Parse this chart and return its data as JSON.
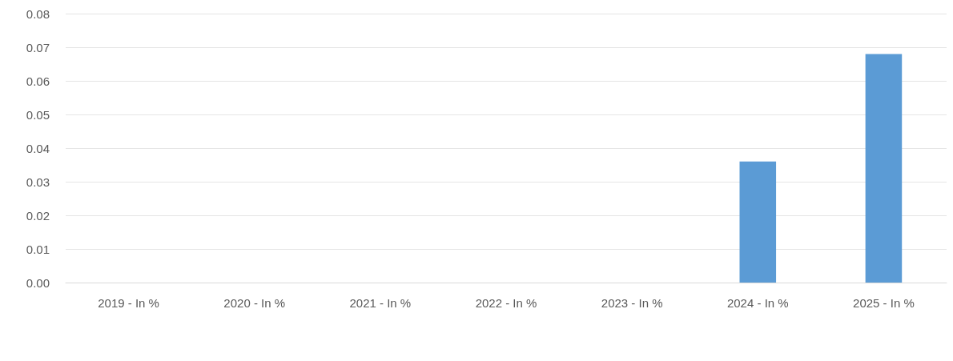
{
  "chart_data": {
    "type": "bar",
    "categories": [
      "2019 - In %",
      "2020 - In %",
      "2021 - In %",
      "2022 - In %",
      "2023 - In %",
      "2024 - In %",
      "2025 - In %"
    ],
    "series": [
      {
        "color": "#5b9bd5",
        "values": [
          0,
          0,
          0,
          0,
          0,
          0.036,
          0.068
        ]
      }
    ],
    "ylim": [
      0,
      0.08
    ],
    "yticks": [
      {
        "value": 0,
        "label": "0.00"
      },
      0.01,
      0.02,
      0.03,
      0.04,
      0.05,
      0.06,
      0.07,
      0.08
    ],
    "grid": "y"
  }
}
